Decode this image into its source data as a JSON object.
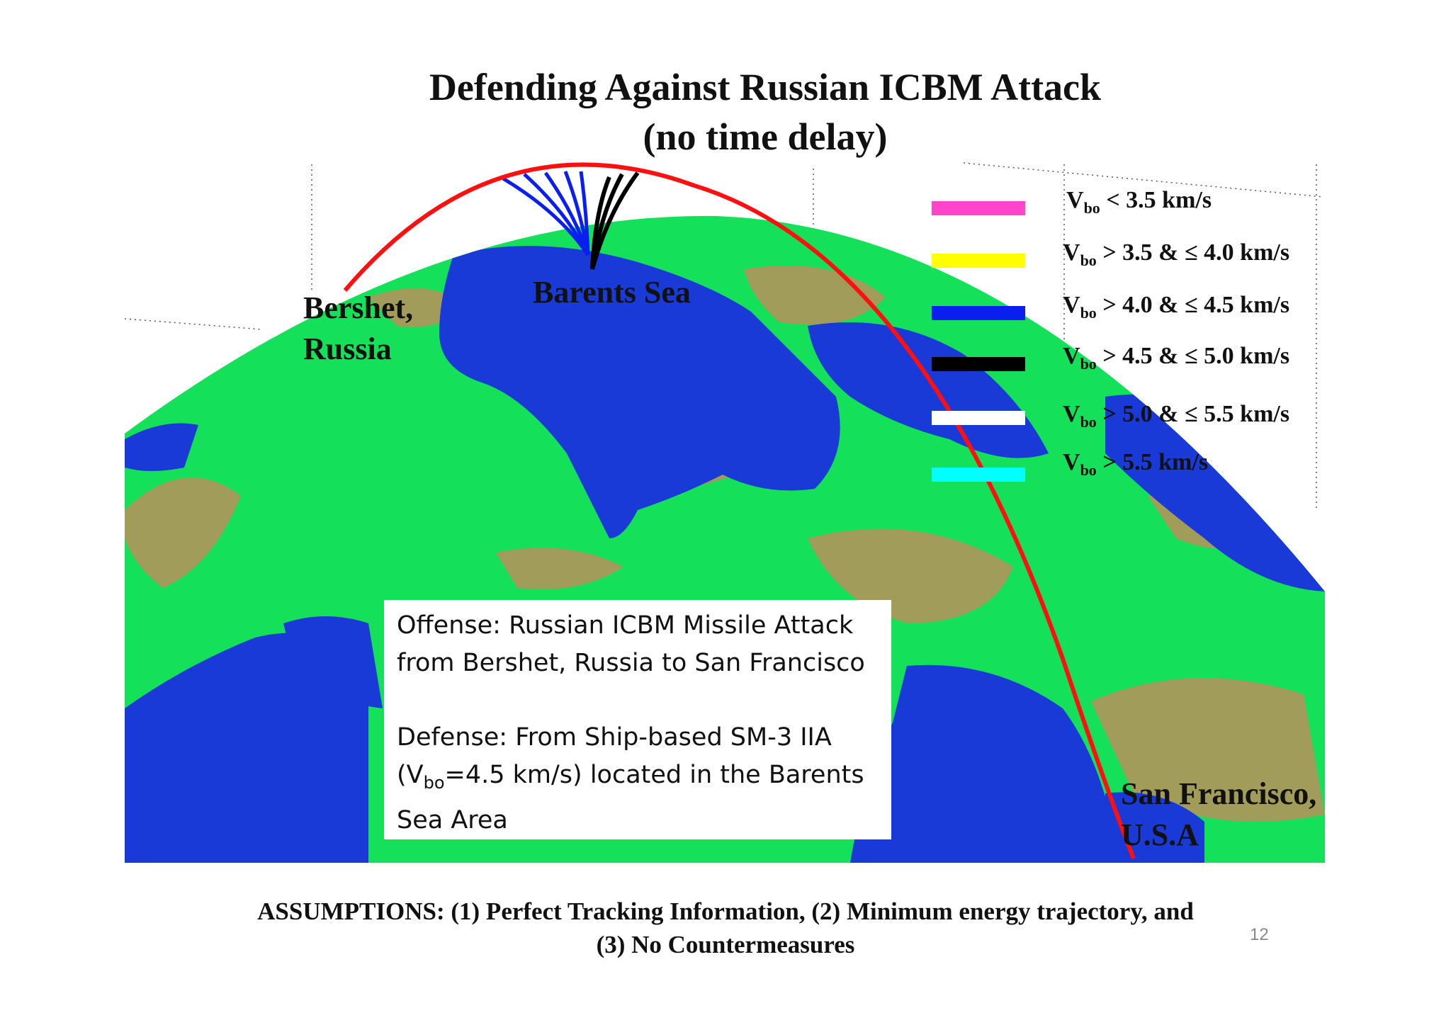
{
  "title": {
    "line1": "Defending Against Russian ICBM Attack",
    "line2": "(no time delay)"
  },
  "locations": {
    "origin": "Bershet,\nRussia",
    "sea": "Barents Sea",
    "target": "San Francisco,\nU.S.A"
  },
  "legend": [
    {
      "color": "#ff44cc",
      "prefix": "V",
      "sub": "bo",
      "text": " < 3.5 km/s"
    },
    {
      "color": "#ffff00",
      "prefix": "V",
      "sub": "bo",
      "text": " > 3.5 & ≤ 4.0 km/s"
    },
    {
      "color": "#0a1ef0",
      "prefix": "V",
      "sub": "bo",
      "text": " > 4.0 & ≤ 4.5 km/s"
    },
    {
      "color": "#000000",
      "prefix": "V",
      "sub": "bo",
      "text": " > 4.5 & ≤ 5.0 km/s"
    },
    {
      "color": "#ffffff",
      "prefix": "V",
      "sub": "bo",
      "text": " > 5.0 & ≤ 5.5 km/s"
    },
    {
      "color": "#00ffff",
      "prefix": "V",
      "sub": "bo",
      "text": " > 5.5 km/s"
    }
  ],
  "info": {
    "offense": "Offense: Russian ICBM Missile Attack from Bershet, Russia to San Francisco",
    "defense_a": "Defense: From Ship-based SM-3 IIA",
    "defense_b_prefix": "(V",
    "defense_b_sub": "bo",
    "defense_b_suffix": "=4.5 km/s) located in the Barents",
    "defense_c": "Sea Area"
  },
  "footer": {
    "line1": "ASSUMPTIONS: (1) Perfect Tracking Information, (2) Minimum energy trajectory, and",
    "line2": "(3) No Countermeasures"
  },
  "page_number": "12",
  "colors": {
    "ocean": "#1a3ad8",
    "land_green": "#14e05a",
    "land_tan": "#b0955a",
    "missile_track": "#ff1010",
    "interceptor_blue": "#0a1ef0",
    "interceptor_black": "#000000"
  }
}
